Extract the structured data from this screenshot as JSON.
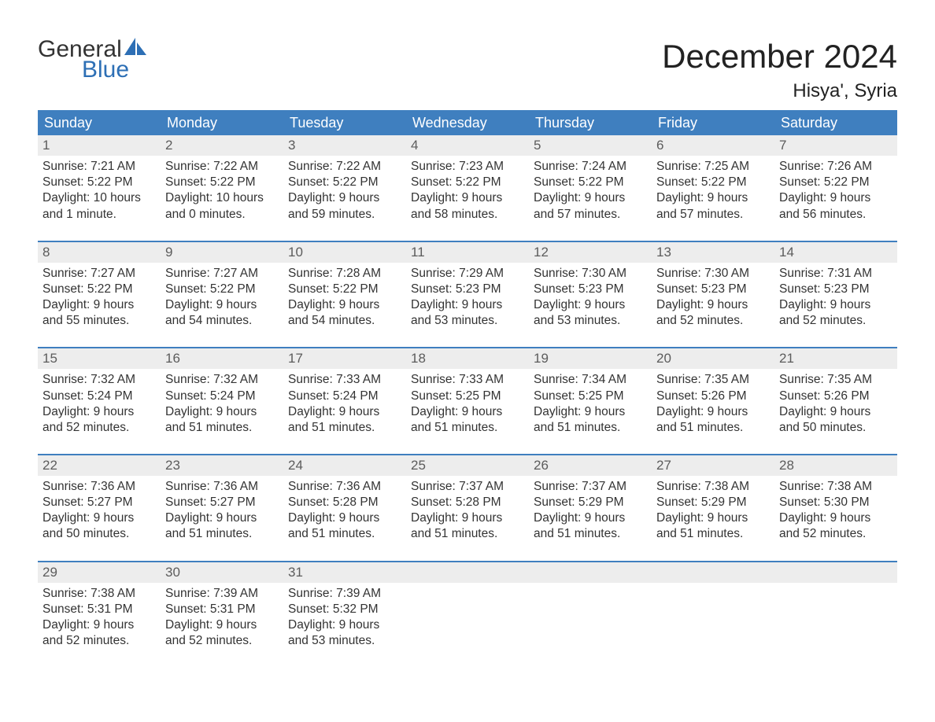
{
  "logo": {
    "text1": "General",
    "text2": "Blue"
  },
  "title": "December 2024",
  "location": "Hisya', Syria",
  "colors": {
    "header_bg": "#3f7fbf",
    "header_text": "#ffffff",
    "row_divider": "#3f7fbf",
    "daynum_bg": "#ededed",
    "daynum_text": "#5c5c5c",
    "body_text": "#333333",
    "logo_blue": "#2d6fb5",
    "background": "#ffffff"
  },
  "fonts": {
    "title_pt": 42,
    "location_pt": 24,
    "dow_pt": 18,
    "body_pt": 15.5
  },
  "dow": [
    "Sunday",
    "Monday",
    "Tuesday",
    "Wednesday",
    "Thursday",
    "Friday",
    "Saturday"
  ],
  "weeks": [
    [
      {
        "n": "1",
        "sr": "Sunrise: 7:21 AM",
        "ss": "Sunset: 5:22 PM",
        "d1": "Daylight: 10 hours",
        "d2": "and 1 minute."
      },
      {
        "n": "2",
        "sr": "Sunrise: 7:22 AM",
        "ss": "Sunset: 5:22 PM",
        "d1": "Daylight: 10 hours",
        "d2": "and 0 minutes."
      },
      {
        "n": "3",
        "sr": "Sunrise: 7:22 AM",
        "ss": "Sunset: 5:22 PM",
        "d1": "Daylight: 9 hours",
        "d2": "and 59 minutes."
      },
      {
        "n": "4",
        "sr": "Sunrise: 7:23 AM",
        "ss": "Sunset: 5:22 PM",
        "d1": "Daylight: 9 hours",
        "d2": "and 58 minutes."
      },
      {
        "n": "5",
        "sr": "Sunrise: 7:24 AM",
        "ss": "Sunset: 5:22 PM",
        "d1": "Daylight: 9 hours",
        "d2": "and 57 minutes."
      },
      {
        "n": "6",
        "sr": "Sunrise: 7:25 AM",
        "ss": "Sunset: 5:22 PM",
        "d1": "Daylight: 9 hours",
        "d2": "and 57 minutes."
      },
      {
        "n": "7",
        "sr": "Sunrise: 7:26 AM",
        "ss": "Sunset: 5:22 PM",
        "d1": "Daylight: 9 hours",
        "d2": "and 56 minutes."
      }
    ],
    [
      {
        "n": "8",
        "sr": "Sunrise: 7:27 AM",
        "ss": "Sunset: 5:22 PM",
        "d1": "Daylight: 9 hours",
        "d2": "and 55 minutes."
      },
      {
        "n": "9",
        "sr": "Sunrise: 7:27 AM",
        "ss": "Sunset: 5:22 PM",
        "d1": "Daylight: 9 hours",
        "d2": "and 54 minutes."
      },
      {
        "n": "10",
        "sr": "Sunrise: 7:28 AM",
        "ss": "Sunset: 5:22 PM",
        "d1": "Daylight: 9 hours",
        "d2": "and 54 minutes."
      },
      {
        "n": "11",
        "sr": "Sunrise: 7:29 AM",
        "ss": "Sunset: 5:23 PM",
        "d1": "Daylight: 9 hours",
        "d2": "and 53 minutes."
      },
      {
        "n": "12",
        "sr": "Sunrise: 7:30 AM",
        "ss": "Sunset: 5:23 PM",
        "d1": "Daylight: 9 hours",
        "d2": "and 53 minutes."
      },
      {
        "n": "13",
        "sr": "Sunrise: 7:30 AM",
        "ss": "Sunset: 5:23 PM",
        "d1": "Daylight: 9 hours",
        "d2": "and 52 minutes."
      },
      {
        "n": "14",
        "sr": "Sunrise: 7:31 AM",
        "ss": "Sunset: 5:23 PM",
        "d1": "Daylight: 9 hours",
        "d2": "and 52 minutes."
      }
    ],
    [
      {
        "n": "15",
        "sr": "Sunrise: 7:32 AM",
        "ss": "Sunset: 5:24 PM",
        "d1": "Daylight: 9 hours",
        "d2": "and 52 minutes."
      },
      {
        "n": "16",
        "sr": "Sunrise: 7:32 AM",
        "ss": "Sunset: 5:24 PM",
        "d1": "Daylight: 9 hours",
        "d2": "and 51 minutes."
      },
      {
        "n": "17",
        "sr": "Sunrise: 7:33 AM",
        "ss": "Sunset: 5:24 PM",
        "d1": "Daylight: 9 hours",
        "d2": "and 51 minutes."
      },
      {
        "n": "18",
        "sr": "Sunrise: 7:33 AM",
        "ss": "Sunset: 5:25 PM",
        "d1": "Daylight: 9 hours",
        "d2": "and 51 minutes."
      },
      {
        "n": "19",
        "sr": "Sunrise: 7:34 AM",
        "ss": "Sunset: 5:25 PM",
        "d1": "Daylight: 9 hours",
        "d2": "and 51 minutes."
      },
      {
        "n": "20",
        "sr": "Sunrise: 7:35 AM",
        "ss": "Sunset: 5:26 PM",
        "d1": "Daylight: 9 hours",
        "d2": "and 51 minutes."
      },
      {
        "n": "21",
        "sr": "Sunrise: 7:35 AM",
        "ss": "Sunset: 5:26 PM",
        "d1": "Daylight: 9 hours",
        "d2": "and 50 minutes."
      }
    ],
    [
      {
        "n": "22",
        "sr": "Sunrise: 7:36 AM",
        "ss": "Sunset: 5:27 PM",
        "d1": "Daylight: 9 hours",
        "d2": "and 50 minutes."
      },
      {
        "n": "23",
        "sr": "Sunrise: 7:36 AM",
        "ss": "Sunset: 5:27 PM",
        "d1": "Daylight: 9 hours",
        "d2": "and 51 minutes."
      },
      {
        "n": "24",
        "sr": "Sunrise: 7:36 AM",
        "ss": "Sunset: 5:28 PM",
        "d1": "Daylight: 9 hours",
        "d2": "and 51 minutes."
      },
      {
        "n": "25",
        "sr": "Sunrise: 7:37 AM",
        "ss": "Sunset: 5:28 PM",
        "d1": "Daylight: 9 hours",
        "d2": "and 51 minutes."
      },
      {
        "n": "26",
        "sr": "Sunrise: 7:37 AM",
        "ss": "Sunset: 5:29 PM",
        "d1": "Daylight: 9 hours",
        "d2": "and 51 minutes."
      },
      {
        "n": "27",
        "sr": "Sunrise: 7:38 AM",
        "ss": "Sunset: 5:29 PM",
        "d1": "Daylight: 9 hours",
        "d2": "and 51 minutes."
      },
      {
        "n": "28",
        "sr": "Sunrise: 7:38 AM",
        "ss": "Sunset: 5:30 PM",
        "d1": "Daylight: 9 hours",
        "d2": "and 52 minutes."
      }
    ],
    [
      {
        "n": "29",
        "sr": "Sunrise: 7:38 AM",
        "ss": "Sunset: 5:31 PM",
        "d1": "Daylight: 9 hours",
        "d2": "and 52 minutes."
      },
      {
        "n": "30",
        "sr": "Sunrise: 7:39 AM",
        "ss": "Sunset: 5:31 PM",
        "d1": "Daylight: 9 hours",
        "d2": "and 52 minutes."
      },
      {
        "n": "31",
        "sr": "Sunrise: 7:39 AM",
        "ss": "Sunset: 5:32 PM",
        "d1": "Daylight: 9 hours",
        "d2": "and 53 minutes."
      },
      {
        "n": "",
        "sr": "",
        "ss": "",
        "d1": "",
        "d2": ""
      },
      {
        "n": "",
        "sr": "",
        "ss": "",
        "d1": "",
        "d2": ""
      },
      {
        "n": "",
        "sr": "",
        "ss": "",
        "d1": "",
        "d2": ""
      },
      {
        "n": "",
        "sr": "",
        "ss": "",
        "d1": "",
        "d2": ""
      }
    ]
  ]
}
